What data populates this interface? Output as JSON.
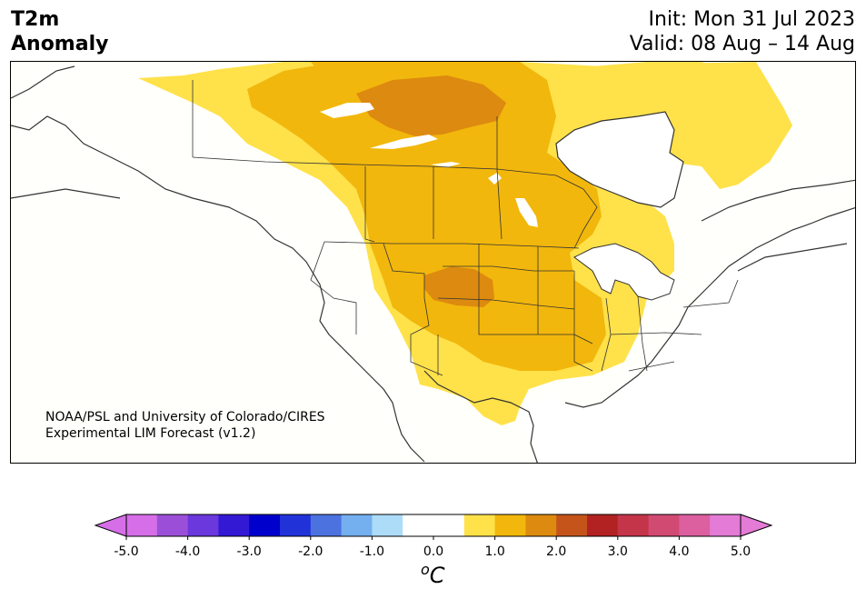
{
  "header": {
    "title_line1": "T2m",
    "title_line2": "Anomaly",
    "init_label": "Init: Mon 31 Jul 2023",
    "valid_label": "Valid: 08 Aug – 14 Aug"
  },
  "credit": {
    "line1": "NOAA/PSL and University of Colorado/CIRES",
    "line2": "Experimental LIM Forecast (v1.2)"
  },
  "colorbar": {
    "unit_base": "C",
    "unit_sup": "o",
    "ticks": [
      "-5.0",
      "-4.0",
      "-3.0",
      "-2.0",
      "-1.0",
      "0.0",
      "1.0",
      "2.0",
      "3.0",
      "4.0",
      "5.0"
    ],
    "colors": [
      "#d66ee8",
      "#9b4fd9",
      "#6a38dc",
      "#3419d4",
      "#0000cc",
      "#2133d8",
      "#4c72e0",
      "#74aff0",
      "#addcf8",
      "#ffffff",
      "#ffffff",
      "#ffe14a",
      "#f2b70c",
      "#dd8a10",
      "#c4541a",
      "#b22222",
      "#c4354a",
      "#d14a72",
      "#dc5fa0",
      "#e47bd6"
    ],
    "under_color": "#d66ee8",
    "over_color": "#e47bd6"
  },
  "map": {
    "anomaly_colors": {
      "pos_0_5_1_0": "#ffe14a",
      "pos_1_0_1_5": "#f2b70c",
      "pos_1_5_2_0": "#dd8a10"
    },
    "land_color": "#fffffb",
    "boundary_color": "#333333"
  }
}
